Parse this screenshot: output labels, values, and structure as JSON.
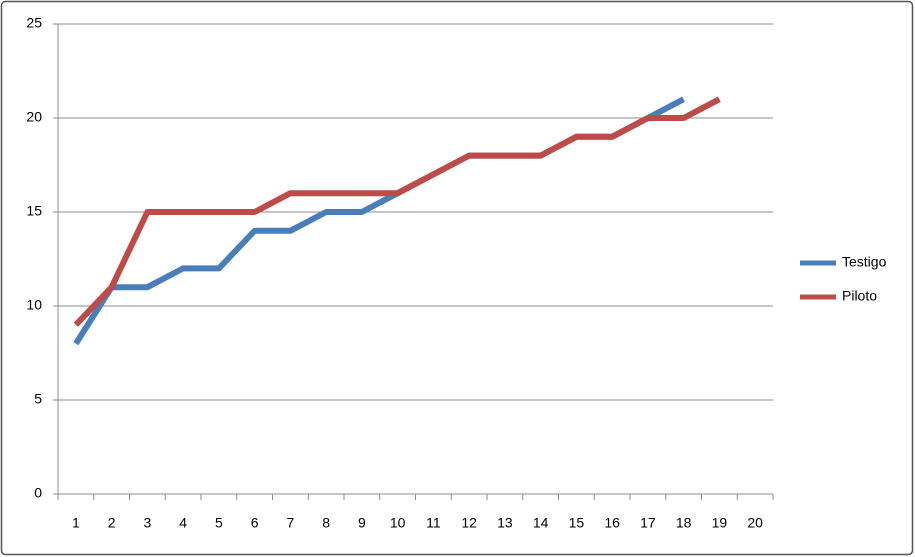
{
  "chart_data": {
    "type": "line",
    "categories": [
      1,
      2,
      3,
      4,
      5,
      6,
      7,
      8,
      9,
      10,
      11,
      12,
      13,
      14,
      15,
      16,
      17,
      18,
      19,
      20
    ],
    "series": [
      {
        "name": "Testigo",
        "color": "#4a7ebb",
        "values": [
          8,
          11,
          11,
          12,
          12,
          14,
          14,
          15,
          15,
          16,
          17,
          18,
          18,
          18,
          19,
          19,
          20,
          21,
          null,
          null
        ]
      },
      {
        "name": "Piloto",
        "color": "#be4b48",
        "values": [
          9,
          11,
          15,
          15,
          15,
          15,
          16,
          16,
          16,
          16,
          17,
          18,
          18,
          18,
          19,
          19,
          20,
          20,
          21,
          null
        ]
      }
    ],
    "ylim": [
      0,
      25
    ],
    "yticks": [
      0,
      5,
      10,
      15,
      20,
      25
    ],
    "grid": true,
    "legend": "right"
  }
}
